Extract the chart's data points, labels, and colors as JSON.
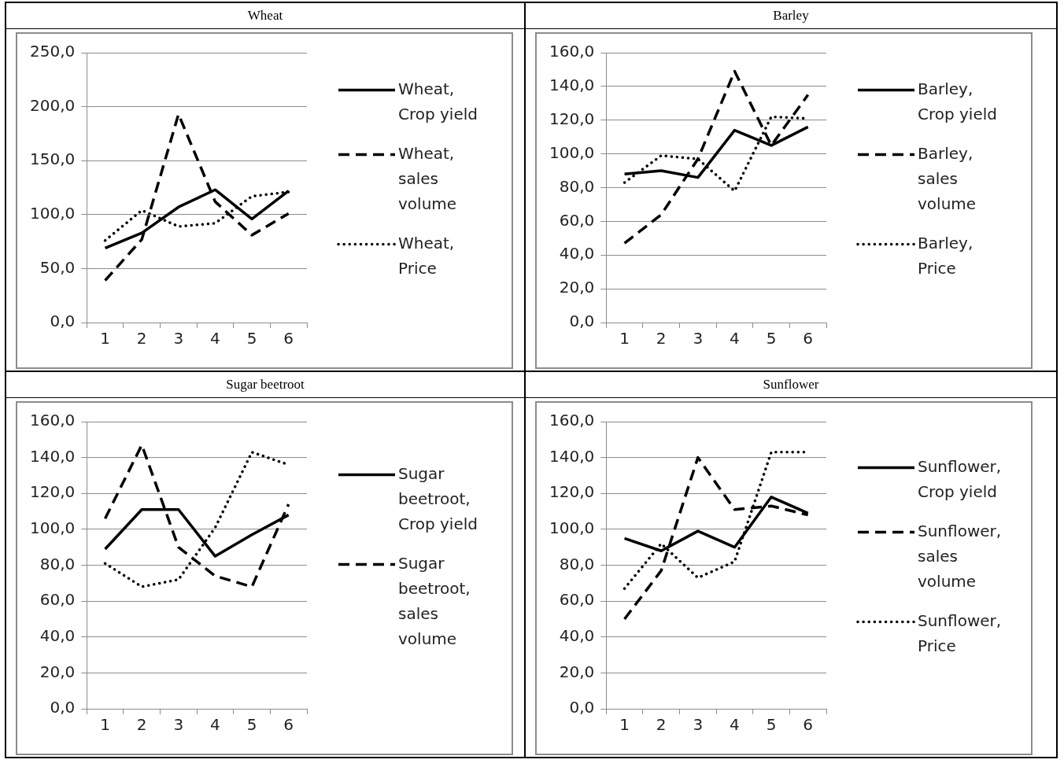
{
  "chart_data": [
    {
      "type": "line",
      "title": "Wheat",
      "categories": [
        "1",
        "2",
        "3",
        "4",
        "5",
        "6"
      ],
      "ylim": [
        0,
        250
      ],
      "yticks": [
        {
          "value": 0,
          "label": "0,0"
        },
        {
          "value": 50,
          "label": "50,0"
        },
        {
          "value": 100,
          "label": "100,0"
        },
        {
          "value": 150,
          "label": "150,0"
        },
        {
          "value": 200,
          "label": "200,0"
        },
        {
          "value": 250,
          "label": "250,0"
        }
      ],
      "grid": "y",
      "legend": "right",
      "marker": "none",
      "series": [
        {
          "name": "Wheat, Crop yield",
          "color": "#000000",
          "line_style": "solid",
          "values": [
            69,
            83,
            107,
            123,
            96,
            122
          ]
        },
        {
          "name": "Wheat, sales volume",
          "color": "#000000",
          "line_style": "dashed",
          "values": [
            39,
            77,
            193,
            112,
            81,
            101
          ]
        },
        {
          "name": "Wheat, Price",
          "color": "#000000",
          "line_style": "dotted",
          "values": [
            76,
            104,
            89,
            92,
            117,
            121
          ]
        }
      ]
    },
    {
      "type": "line",
      "title": "Barley",
      "categories": [
        "1",
        "2",
        "3",
        "4",
        "5",
        "6"
      ],
      "ylim": [
        0,
        160
      ],
      "yticks": [
        {
          "value": 0,
          "label": "0,0"
        },
        {
          "value": 20,
          "label": "20,0"
        },
        {
          "value": 40,
          "label": "40,0"
        },
        {
          "value": 60,
          "label": "60,0"
        },
        {
          "value": 80,
          "label": "80,0"
        },
        {
          "value": 100,
          "label": "100,0"
        },
        {
          "value": 120,
          "label": "120,0"
        },
        {
          "value": 140,
          "label": "140,0"
        },
        {
          "value": 160,
          "label": "160,0"
        }
      ],
      "grid": "y",
      "legend": "right",
      "marker": "none",
      "series": [
        {
          "name": "Barley, Crop yield",
          "color": "#000000",
          "line_style": "solid",
          "values": [
            88,
            90,
            86,
            114,
            105,
            116
          ]
        },
        {
          "name": "Barley, sales volume",
          "color": "#000000",
          "line_style": "dashed",
          "values": [
            47,
            64,
            97,
            149,
            105,
            135
          ]
        },
        {
          "name": "Barley, Price",
          "color": "#000000",
          "line_style": "dotted",
          "values": [
            83,
            99,
            97,
            78,
            122,
            121
          ]
        }
      ]
    },
    {
      "type": "line",
      "title": "Sugar beetroot",
      "categories": [
        "1",
        "2",
        "3",
        "4",
        "5",
        "6"
      ],
      "ylim": [
        0,
        160
      ],
      "yticks": [
        {
          "value": 0,
          "label": "0,0"
        },
        {
          "value": 20,
          "label": "20,0"
        },
        {
          "value": 40,
          "label": "40,0"
        },
        {
          "value": 60,
          "label": "60,0"
        },
        {
          "value": 80,
          "label": "80,0"
        },
        {
          "value": 100,
          "label": "100,0"
        },
        {
          "value": 120,
          "label": "120,0"
        },
        {
          "value": 140,
          "label": "140,0"
        },
        {
          "value": 160,
          "label": "160,0"
        }
      ],
      "grid": "y",
      "legend": "right",
      "marker": "none",
      "series": [
        {
          "name": "Sugar beetroot, Crop yield",
          "color": "#000000",
          "line_style": "solid",
          "values": [
            89,
            111,
            111,
            85,
            97,
            108
          ]
        },
        {
          "name": "Sugar beetroot, sales volume",
          "color": "#000000",
          "line_style": "dashed",
          "values": [
            106,
            147,
            90,
            74,
            68,
            114
          ]
        },
        {
          "color": "#000000",
          "line_style": "dotted",
          "values": [
            81,
            68,
            72,
            101,
            143,
            136
          ]
        }
      ]
    },
    {
      "type": "line",
      "title": "Sunflower",
      "categories": [
        "1",
        "2",
        "3",
        "4",
        "5",
        "6"
      ],
      "ylim": [
        0,
        160
      ],
      "yticks": [
        {
          "value": 0,
          "label": "0,0"
        },
        {
          "value": 20,
          "label": "20,0"
        },
        {
          "value": 40,
          "label": "40,0"
        },
        {
          "value": 60,
          "label": "60,0"
        },
        {
          "value": 80,
          "label": "80,0"
        },
        {
          "value": 100,
          "label": "100,0"
        },
        {
          "value": 120,
          "label": "120,0"
        },
        {
          "value": 140,
          "label": "140,0"
        },
        {
          "value": 160,
          "label": "160,0"
        }
      ],
      "grid": "y",
      "legend": "right",
      "marker": "none",
      "series": [
        {
          "name": "Sunflower, Crop yield",
          "color": "#000000",
          "line_style": "solid",
          "values": [
            95,
            88,
            99,
            90,
            118,
            109
          ]
        },
        {
          "name": "Sunflower, sales volume",
          "color": "#000000",
          "line_style": "dashed",
          "values": [
            50,
            77,
            140,
            111,
            113,
            108
          ]
        },
        {
          "name": "Sunflower, Price",
          "color": "#000000",
          "line_style": "dotted",
          "values": [
            67,
            92,
            73,
            82,
            143,
            143
          ]
        }
      ]
    }
  ]
}
